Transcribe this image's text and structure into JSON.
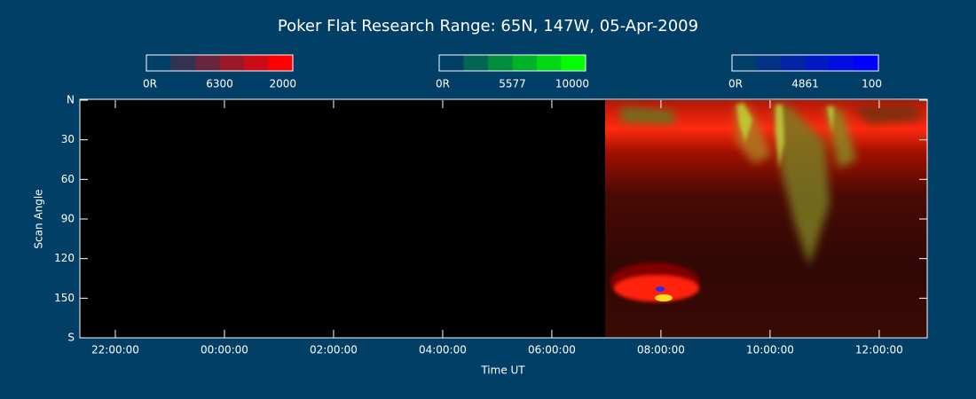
{
  "chart_data": {
    "type": "keogram",
    "title": "Poker Flat Research Range: 65N, 147W, 05-Apr-2009",
    "xlabel": "Time UT",
    "ylabel": "Scan Angle",
    "xlim": [
      21.35,
      36.88
    ],
    "xticks": [
      {
        "value": 22,
        "label": "22:00:00"
      },
      {
        "value": 24,
        "label": "00:00:00"
      },
      {
        "value": 26,
        "label": "02:00:00"
      },
      {
        "value": 28,
        "label": "04:00:00"
      },
      {
        "value": 30,
        "label": "06:00:00"
      },
      {
        "value": 32,
        "label": "08:00:00"
      },
      {
        "value": 34,
        "label": "10:00:00"
      },
      {
        "value": 36,
        "label": "12:00:00"
      }
    ],
    "ylim": [
      0,
      180
    ],
    "yticks": [
      {
        "value": 0,
        "label": "N"
      },
      30,
      60,
      90,
      120,
      150,
      {
        "value": 180,
        "label": "S"
      }
    ],
    "colorbars": [
      {
        "labels": [
          "0R",
          "6300",
          "2000"
        ],
        "color": "#ff0000"
      },
      {
        "labels": [
          "0R",
          "5577",
          "10000"
        ],
        "color": "#00ff00"
      },
      {
        "labels": [
          "0R",
          "4861",
          "100"
        ],
        "color": "#0000ff"
      }
    ]
  }
}
